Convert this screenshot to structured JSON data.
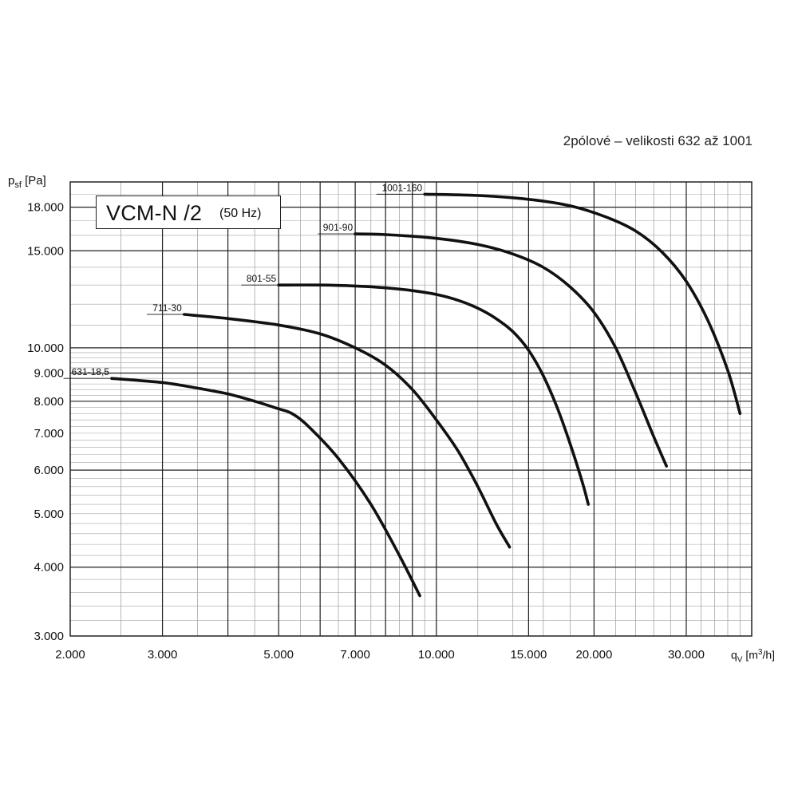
{
  "subtitle": "2pólové – velikosti 632 až 1001",
  "title_box": {
    "main": "VCM-N /2",
    "freq": "(50 Hz)"
  },
  "axes": {
    "ylabel_symbol": "p",
    "ylabel_sub": "sf",
    "ylabel_unit": "[Pa]",
    "xlabel_symbol": "q",
    "xlabel_sub": "V",
    "xlabel_unit_pre": "[m",
    "xlabel_unit_sup": "3",
    "xlabel_unit_post": "/h]"
  },
  "chart_data": {
    "type": "line",
    "xscale": "log",
    "yscale": "log",
    "xlim": [
      2000,
      40000
    ],
    "ylim": [
      3000,
      20000
    ],
    "grid": true,
    "x_ticks": [
      {
        "value": 2000,
        "label": "2.000"
      },
      {
        "value": 3000,
        "label": "3.000"
      },
      {
        "value": 5000,
        "label": "5.000"
      },
      {
        "value": 7000,
        "label": "7.000"
      },
      {
        "value": 10000,
        "label": "10.000"
      },
      {
        "value": 15000,
        "label": "15.000"
      },
      {
        "value": 20000,
        "label": "20.000"
      },
      {
        "value": 30000,
        "label": "30.000"
      }
    ],
    "y_ticks": [
      {
        "value": 3000,
        "label": "3.000"
      },
      {
        "value": 4000,
        "label": "4.000"
      },
      {
        "value": 5000,
        "label": "5.000"
      },
      {
        "value": 6000,
        "label": "6.000"
      },
      {
        "value": 7000,
        "label": "7.000"
      },
      {
        "value": 8000,
        "label": "8.000"
      },
      {
        "value": 9000,
        "label": "9.000"
      },
      {
        "value": 10000,
        "label": "10.000"
      },
      {
        "value": 15000,
        "label": "15.000"
      },
      {
        "value": 18000,
        "label": "18.000"
      }
    ],
    "series": [
      {
        "name": "631-18,5",
        "x": [
          2400,
          3000,
          3500,
          4000,
          4500,
          5000,
          5300,
          5700,
          6500,
          7500,
          8500,
          9300
        ],
        "y": [
          8800,
          8650,
          8450,
          8250,
          8000,
          7750,
          7600,
          7200,
          6300,
          5200,
          4200,
          3550
        ]
      },
      {
        "name": "711-30",
        "x": [
          3300,
          4000,
          5000,
          6000,
          7000,
          8000,
          9000,
          10000,
          11000,
          12000,
          13000,
          13800
        ],
        "y": [
          11500,
          11300,
          11000,
          10600,
          10000,
          9300,
          8400,
          7400,
          6500,
          5600,
          4800,
          4350
        ]
      },
      {
        "name": "801-55",
        "x": [
          5000,
          6000,
          7000,
          8000,
          9000,
          10000,
          11000,
          12000,
          13000,
          14000,
          15000,
          16000,
          17000,
          18000,
          19000,
          19500
        ],
        "y": [
          13000,
          13000,
          12950,
          12850,
          12700,
          12500,
          12200,
          11800,
          11300,
          10700,
          9900,
          8900,
          7800,
          6700,
          5700,
          5200
        ]
      },
      {
        "name": "901-90",
        "x": [
          7000,
          8000,
          10000,
          12000,
          14000,
          16000,
          18000,
          20000,
          22000,
          24000,
          26000,
          27500
        ],
        "y": [
          16100,
          16050,
          15800,
          15400,
          14800,
          14000,
          12900,
          11600,
          10000,
          8300,
          6900,
          6100
        ]
      },
      {
        "name": "1001-160",
        "x": [
          9500,
          12000,
          15000,
          18000,
          21000,
          24000,
          27000,
          30000,
          33000,
          36000,
          38000
        ],
        "y": [
          19000,
          18900,
          18600,
          18100,
          17300,
          16300,
          14900,
          13200,
          11200,
          9100,
          7600
        ]
      }
    ]
  }
}
